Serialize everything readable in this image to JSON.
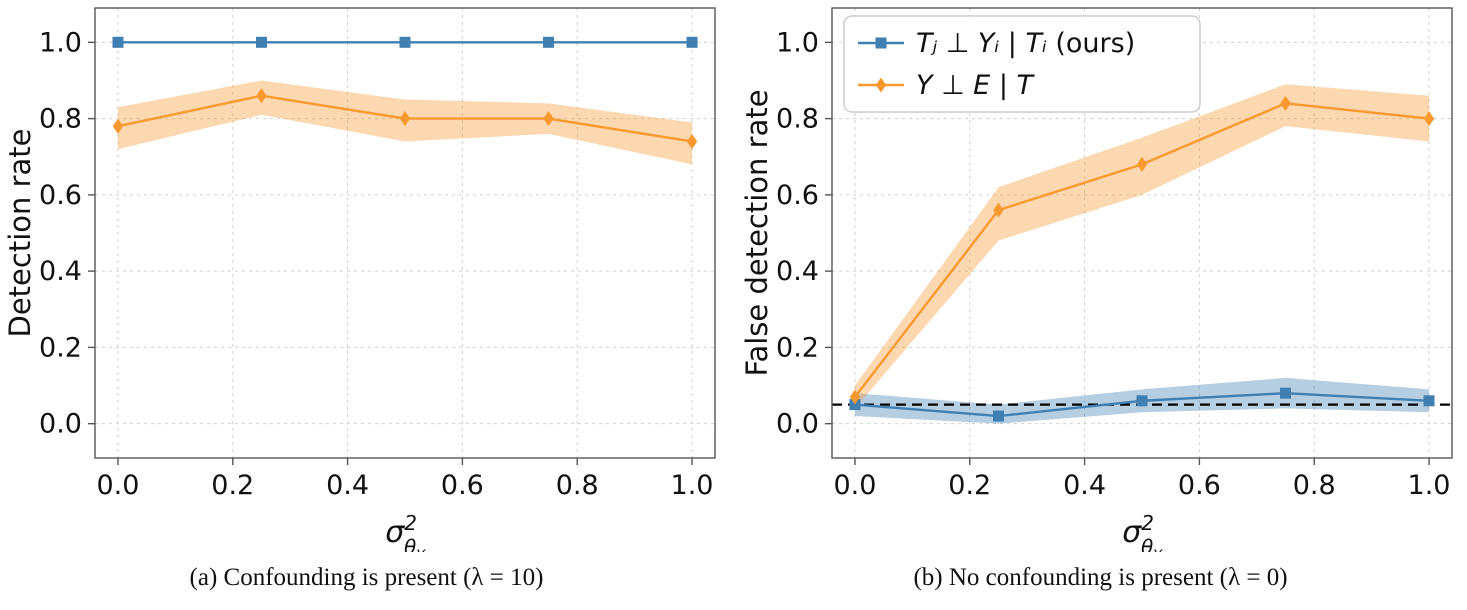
{
  "style": {
    "blue": "#3f7fb2",
    "orange": "#f8982f",
    "band_opacity": 0.38,
    "grid": "#d0d0d0",
    "spine": "#555555",
    "text": "#111111",
    "threshold": "#000000",
    "legend_border": "#cccccc",
    "background": "#ffffff"
  },
  "chart_data": [
    {
      "type": "line",
      "ylabel": "Detection rate",
      "xlabel": {
        "base": "σ",
        "sup": "2",
        "sub": "θ",
        "subsub": "Y"
      },
      "x": [
        0.0,
        0.25,
        0.5,
        0.75,
        1.0
      ],
      "xlim": [
        -0.04,
        1.04
      ],
      "ylim": [
        -0.09,
        1.09
      ],
      "xtick_values": [
        0.0,
        0.2,
        0.4,
        0.6,
        0.8,
        1.0
      ],
      "xtick_labels": [
        "0.0",
        "0.2",
        "0.4",
        "0.6",
        "0.8",
        "1.0"
      ],
      "ytick_values": [
        0.0,
        0.2,
        0.4,
        0.6,
        0.8,
        1.0
      ],
      "ytick_labels": [
        "0.0",
        "0.2",
        "0.4",
        "0.6",
        "0.8",
        "1.0"
      ],
      "grid": true,
      "series": [
        {
          "name": "Tⱼ ⊥ Yᵢ | Tᵢ (ours)",
          "color": "blue",
          "marker": "square",
          "values": [
            1.0,
            1.0,
            1.0,
            1.0,
            1.0
          ],
          "band_lower": [
            1.0,
            1.0,
            1.0,
            1.0,
            1.0
          ],
          "band_upper": [
            1.0,
            1.0,
            1.0,
            1.0,
            1.0
          ]
        },
        {
          "name": "Y ⊥ E | T",
          "color": "orange",
          "marker": "diamond",
          "values": [
            0.78,
            0.86,
            0.8,
            0.8,
            0.74
          ],
          "band_lower": [
            0.72,
            0.81,
            0.74,
            0.76,
            0.68
          ],
          "band_upper": [
            0.83,
            0.9,
            0.85,
            0.84,
            0.79
          ]
        }
      ],
      "caption": "(a) Confounding is present (λ = 10)"
    },
    {
      "type": "line",
      "ylabel": "False detection rate",
      "xlabel": {
        "base": "σ",
        "sup": "2",
        "sub": "θ",
        "subsub": "Y"
      },
      "x": [
        0.0,
        0.25,
        0.5,
        0.75,
        1.0
      ],
      "xlim": [
        -0.04,
        1.04
      ],
      "ylim": [
        -0.09,
        1.09
      ],
      "xtick_values": [
        0.0,
        0.2,
        0.4,
        0.6,
        0.8,
        1.0
      ],
      "xtick_labels": [
        "0.0",
        "0.2",
        "0.4",
        "0.6",
        "0.8",
        "1.0"
      ],
      "ytick_values": [
        0.0,
        0.2,
        0.4,
        0.6,
        0.8,
        1.0
      ],
      "ytick_labels": [
        "0.0",
        "0.2",
        "0.4",
        "0.6",
        "0.8",
        "1.0"
      ],
      "grid": true,
      "hline": 0.05,
      "series": [
        {
          "name": "Tⱼ ⊥ Yᵢ | Tᵢ (ours)",
          "color": "blue",
          "marker": "square",
          "values": [
            0.05,
            0.02,
            0.06,
            0.08,
            0.06
          ],
          "band_lower": [
            0.02,
            0.0,
            0.03,
            0.04,
            0.03
          ],
          "band_upper": [
            0.08,
            0.05,
            0.09,
            0.12,
            0.09
          ]
        },
        {
          "name": "Y ⊥ E | T",
          "color": "orange",
          "marker": "diamond",
          "values": [
            0.07,
            0.56,
            0.68,
            0.84,
            0.8
          ],
          "band_lower": [
            0.04,
            0.48,
            0.6,
            0.78,
            0.74
          ],
          "band_upper": [
            0.1,
            0.62,
            0.75,
            0.89,
            0.86
          ]
        }
      ],
      "legend": {
        "position": "upper left",
        "entries": [
          {
            "math": "Tⱼ ⊥ Yᵢ | Tᵢ",
            "plain": " (ours)",
            "color": "blue",
            "marker": "square"
          },
          {
            "math": "Y ⊥ E | T",
            "plain": "",
            "color": "orange",
            "marker": "diamond"
          }
        ]
      },
      "caption": "(b) No confounding is present (λ = 0)"
    }
  ]
}
